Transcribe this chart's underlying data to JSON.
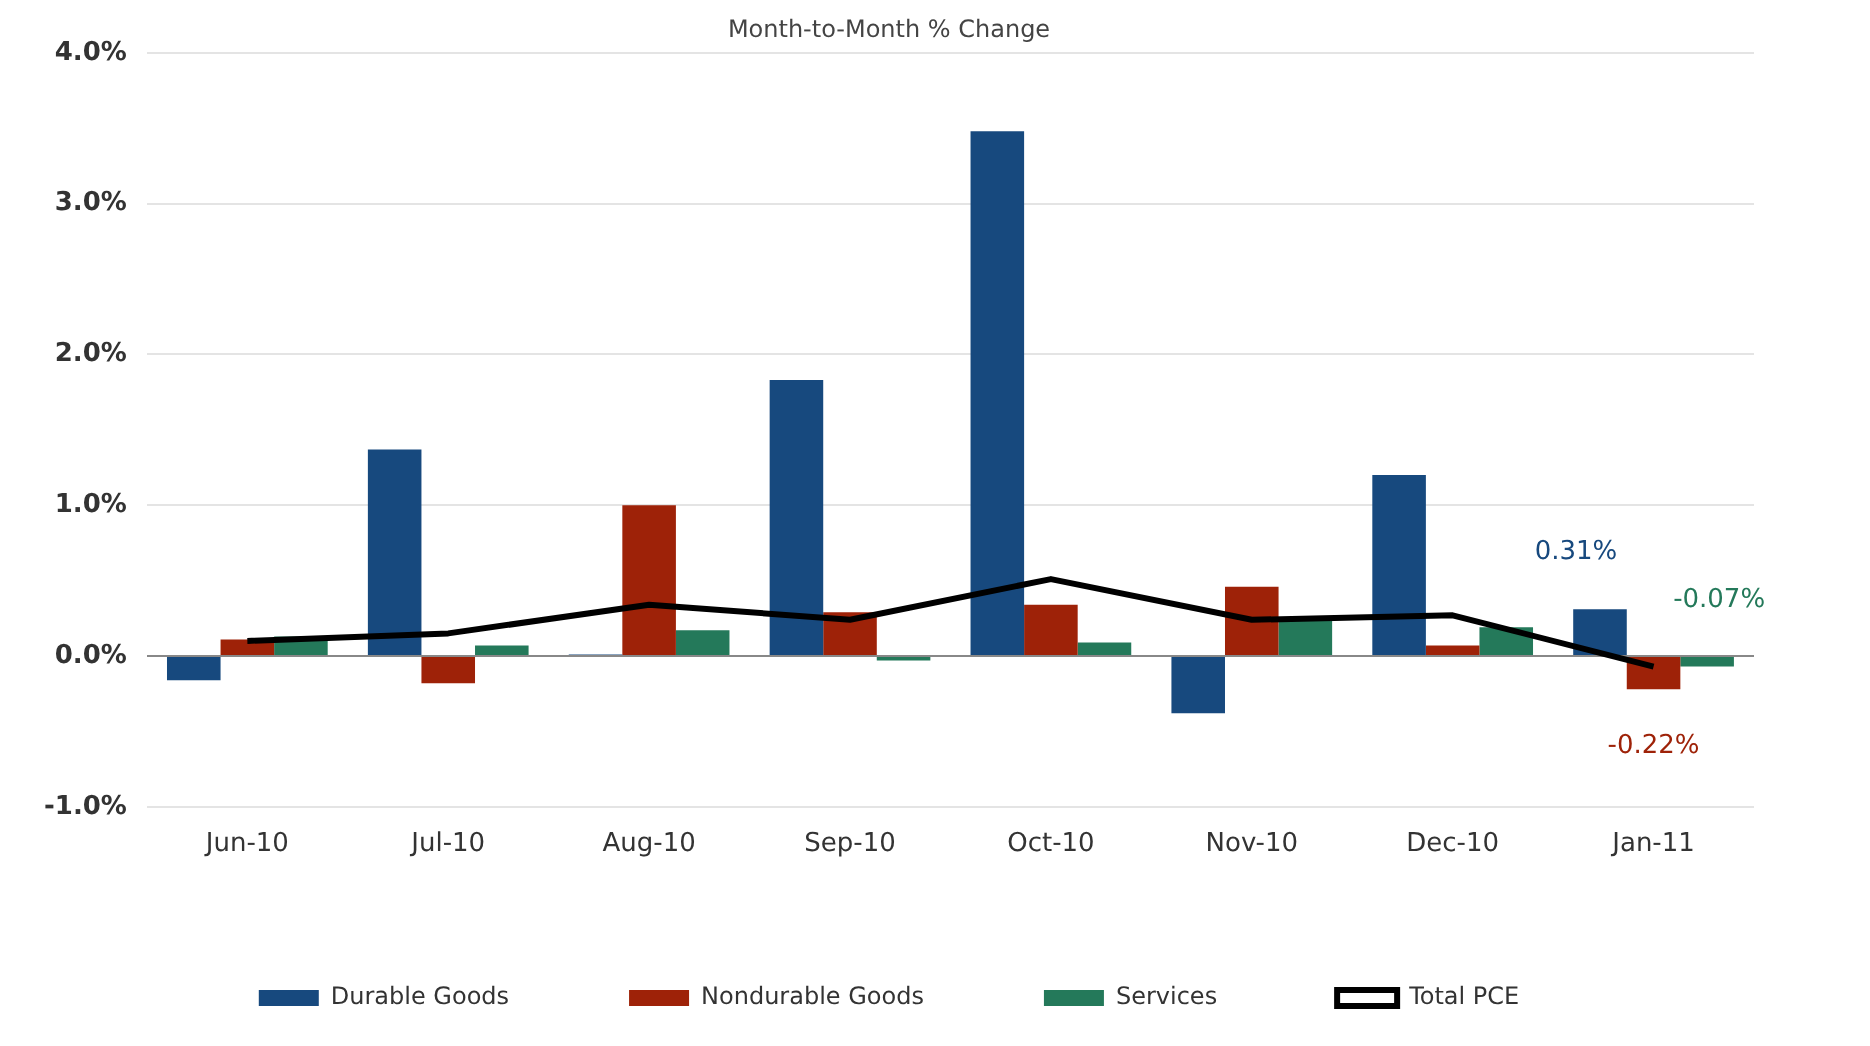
{
  "chart_data": {
    "type": "bar",
    "title": "Month-to-Month % Change",
    "categories": [
      "Jun-10",
      "Jul-10",
      "Aug-10",
      "Sep-10",
      "Oct-10",
      "Nov-10",
      "Dec-10",
      "Jan-11"
    ],
    "series": [
      {
        "name": "Durable Goods",
        "color": "#17497e",
        "values": [
          -0.16,
          1.37,
          0.01,
          1.83,
          3.48,
          -0.38,
          1.2,
          0.31
        ],
        "value_labels": [
          null,
          null,
          null,
          null,
          null,
          null,
          null,
          "0.31%"
        ]
      },
      {
        "name": "Nondurable Goods",
        "color": "#9e2208",
        "values": [
          0.11,
          -0.18,
          1.0,
          0.29,
          0.34,
          0.46,
          0.07,
          -0.22
        ],
        "value_labels": [
          null,
          null,
          null,
          null,
          null,
          null,
          null,
          "-0.22%"
        ]
      },
      {
        "name": "Services",
        "color": "#24795a",
        "values": [
          0.13,
          0.07,
          0.17,
          -0.03,
          0.09,
          0.24,
          0.19,
          -0.07
        ],
        "value_labels": [
          null,
          null,
          null,
          null,
          null,
          null,
          null,
          "-0.07%"
        ]
      },
      {
        "name": "Total PCE",
        "type": "line",
        "color": "#000000",
        "values": [
          0.1,
          0.15,
          0.34,
          0.24,
          0.51,
          0.24,
          0.27,
          -0.07
        ]
      }
    ],
    "ylim": [
      -1,
      4
    ],
    "yticks": [
      {
        "value": -1,
        "label": "-1.0%"
      },
      {
        "value": 0,
        "label": "0.0%"
      },
      {
        "value": 1,
        "label": "1.0%"
      },
      {
        "value": 2,
        "label": "2.0%"
      },
      {
        "value": 3,
        "label": "3.0%"
      },
      {
        "value": 4,
        "label": "4.0%"
      }
    ],
    "grid": "y",
    "legend": "bottom",
    "marker": "none",
    "line_style": "solid"
  }
}
